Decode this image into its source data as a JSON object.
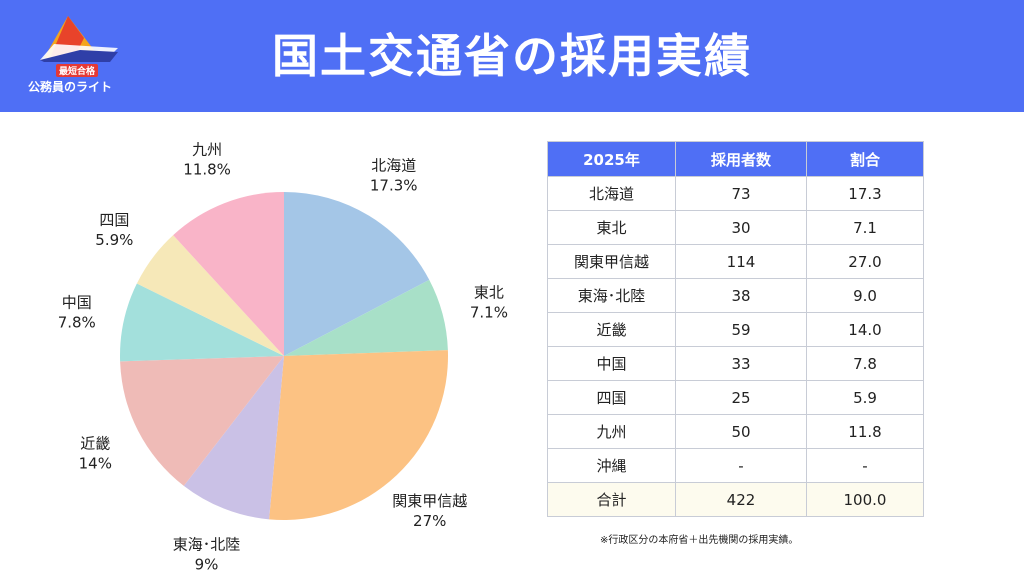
{
  "header": {
    "title": "国土交通省の採用実績",
    "logo_badge": "最短合格",
    "logo_text": "公務員のライト"
  },
  "colors": {
    "header_bg": "#4f6ff5",
    "slices": [
      "#a4c6e7",
      "#a8e0c8",
      "#fcc283",
      "#cac1e6",
      "#efbbb7",
      "#a3e0dc",
      "#f6e8b8",
      "#f9b4c8"
    ]
  },
  "chart_data": {
    "type": "pie",
    "start": "12 o'clock",
    "direction": "clockwise",
    "slices": [
      {
        "label": "北海道",
        "pct_label": "17.3%",
        "value": 17.3
      },
      {
        "label": "東北",
        "pct_label": "7.1%",
        "value": 7.1
      },
      {
        "label": "関東甲信越",
        "pct_label": "27%",
        "value": 27.0
      },
      {
        "label": "東海･北陸",
        "pct_label": "9%",
        "value": 9.0
      },
      {
        "label": "近畿",
        "pct_label": "14%",
        "value": 14.0
      },
      {
        "label": "中国",
        "pct_label": "7.8%",
        "value": 7.8
      },
      {
        "label": "四国",
        "pct_label": "5.9%",
        "value": 5.9
      },
      {
        "label": "九州",
        "pct_label": "11.8%",
        "value": 11.8
      }
    ]
  },
  "table": {
    "headers": [
      "2025年",
      "採用者数",
      "割合"
    ],
    "rows": [
      [
        "北海道",
        "73",
        "17.3"
      ],
      [
        "東北",
        "30",
        "7.1"
      ],
      [
        "関東甲信越",
        "114",
        "27.0"
      ],
      [
        "東海･北陸",
        "38",
        "9.0"
      ],
      [
        "近畿",
        "59",
        "14.0"
      ],
      [
        "中国",
        "33",
        "7.8"
      ],
      [
        "四国",
        "25",
        "5.9"
      ],
      [
        "九州",
        "50",
        "11.8"
      ],
      [
        "沖縄",
        "-",
        "-"
      ],
      [
        "合計",
        "422",
        "100.0"
      ]
    ],
    "note": "※行政区分の本府省＋出先機関の採用実績。"
  }
}
